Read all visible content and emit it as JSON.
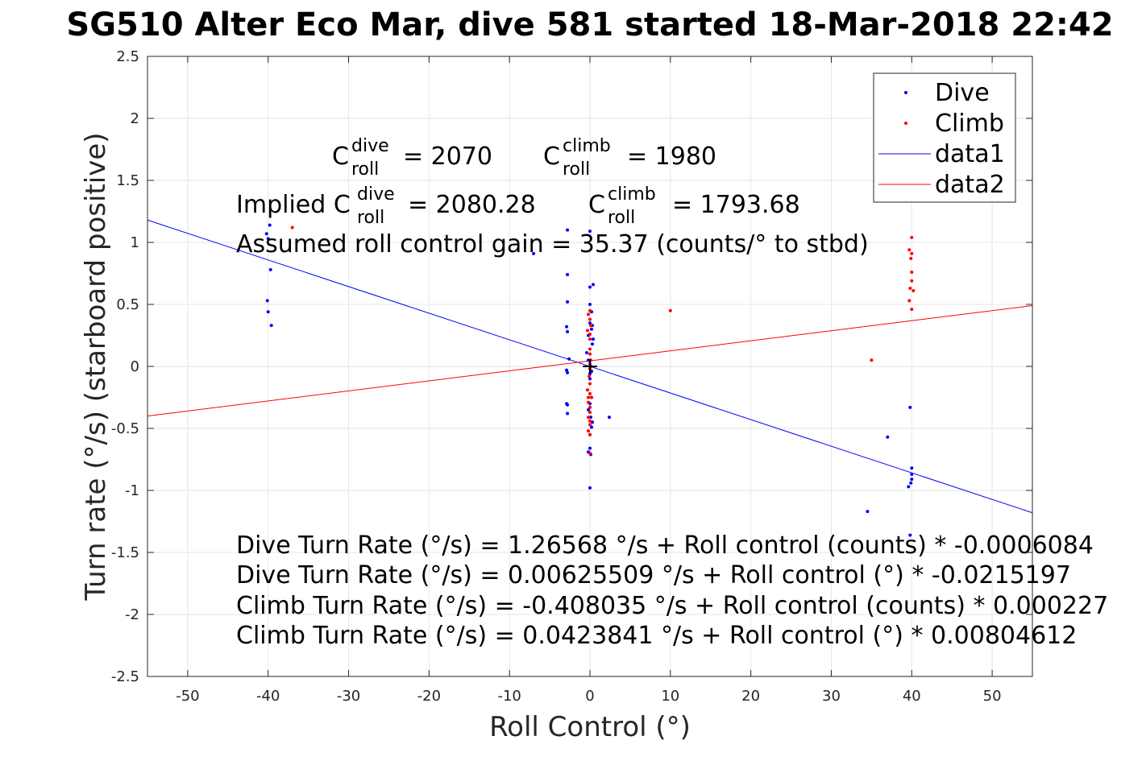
{
  "chart_data": {
    "type": "scatter",
    "title": "SG510 Alter Eco Mar, dive 581 started 18-Mar-2018 22:42",
    "xlabel": "Roll Control (°)",
    "ylabel": "Turn rate (°/s) (starboard positive)",
    "xlim": [
      -55,
      55
    ],
    "ylim": [
      -2.5,
      2.5
    ],
    "grid": true,
    "legend_position": "top-right",
    "x_ticks": [
      -50,
      -40,
      -30,
      -20,
      -10,
      0,
      10,
      20,
      30,
      40,
      50
    ],
    "y_ticks": [
      -2.5,
      -2,
      -1.5,
      -1,
      -0.5,
      0,
      0.5,
      1,
      1.5,
      2,
      2.5
    ],
    "x_tick_labels": [
      "-50",
      "-40",
      "-30",
      "-20",
      "-10",
      "0",
      "10",
      "20",
      "30",
      "40",
      "50"
    ],
    "y_tick_labels": [
      "-2.5",
      "-2",
      "-1.5",
      "-1",
      "-0.5",
      "0",
      "0.5",
      "1",
      "1.5",
      "2",
      "2.5"
    ],
    "colors": {
      "dive": "#0000ff",
      "climb": "#ff0000",
      "center_marker": "#000000"
    },
    "series": [
      {
        "name": "Dive",
        "kind": "points",
        "color": "#0000ff",
        "points": [
          [
            -39.8,
            1.14
          ],
          [
            -40.2,
            1.07
          ],
          [
            -40.0,
            1.03
          ],
          [
            -39.7,
            0.78
          ],
          [
            -40.1,
            0.53
          ],
          [
            -40.0,
            0.44
          ],
          [
            -39.6,
            0.33
          ],
          [
            -7.0,
            0.91
          ],
          [
            -2.8,
            1.1
          ],
          [
            -2.8,
            0.74
          ],
          [
            -2.8,
            0.52
          ],
          [
            -2.9,
            0.32
          ],
          [
            -2.8,
            0.28
          ],
          [
            -2.6,
            0.06
          ],
          [
            -2.9,
            -0.03
          ],
          [
            -2.8,
            -0.05
          ],
          [
            -2.9,
            -0.3
          ],
          [
            -2.8,
            -0.31
          ],
          [
            -2.8,
            -0.38
          ],
          [
            0.0,
            1.09
          ],
          [
            0.4,
            0.66
          ],
          [
            0.0,
            0.64
          ],
          [
            0.0,
            0.5
          ],
          [
            0.2,
            0.44
          ],
          [
            0.0,
            0.35
          ],
          [
            0.3,
            0.33
          ],
          [
            0.2,
            0.3
          ],
          [
            -0.2,
            0.25
          ],
          [
            0.4,
            0.22
          ],
          [
            0.3,
            0.18
          ],
          [
            -0.4,
            0.11
          ],
          [
            -0.2,
            0.05
          ],
          [
            0.0,
            0.02
          ],
          [
            0.1,
            0.0
          ],
          [
            0.2,
            -0.04
          ],
          [
            0.0,
            -0.06
          ],
          [
            0.0,
            -0.1
          ],
          [
            0.2,
            -0.25
          ],
          [
            0.0,
            -0.3
          ],
          [
            -0.2,
            -0.35
          ],
          [
            0.1,
            -0.41
          ],
          [
            0.3,
            -0.45
          ],
          [
            0.2,
            -0.49
          ],
          [
            0.0,
            -0.55
          ],
          [
            0.0,
            -0.66
          ],
          [
            -0.2,
            -0.69
          ],
          [
            0.1,
            -0.71
          ],
          [
            0.0,
            -0.98
          ],
          [
            2.4,
            -0.41
          ],
          [
            34.5,
            -1.17
          ],
          [
            37.0,
            -0.57
          ],
          [
            39.8,
            -0.33
          ],
          [
            40.0,
            -0.82
          ],
          [
            40.0,
            -0.87
          ],
          [
            40.0,
            -0.91
          ],
          [
            39.9,
            -0.94
          ],
          [
            39.6,
            -0.97
          ],
          [
            39.8,
            -1.36
          ]
        ]
      },
      {
        "name": "Climb",
        "kind": "points",
        "color": "#ff0000",
        "points": [
          [
            -37.0,
            1.12
          ],
          [
            0.0,
            0.45
          ],
          [
            -0.2,
            0.42
          ],
          [
            0.0,
            0.38
          ],
          [
            0.1,
            0.33
          ],
          [
            -0.3,
            0.29
          ],
          [
            0.0,
            0.26
          ],
          [
            0.0,
            0.22
          ],
          [
            0.0,
            0.14
          ],
          [
            0.0,
            0.1
          ],
          [
            0.1,
            0.05
          ],
          [
            0.0,
            0.02
          ],
          [
            0.0,
            -0.02
          ],
          [
            -0.1,
            -0.08
          ],
          [
            0.0,
            -0.14
          ],
          [
            -0.3,
            -0.19
          ],
          [
            0.0,
            -0.22
          ],
          [
            -0.2,
            -0.25
          ],
          [
            0.2,
            -0.25
          ],
          [
            -0.2,
            -0.29
          ],
          [
            0.0,
            -0.33
          ],
          [
            0.0,
            -0.37
          ],
          [
            -0.2,
            -0.41
          ],
          [
            0.0,
            -0.44
          ],
          [
            0.0,
            -0.47
          ],
          [
            -0.2,
            -0.52
          ],
          [
            0.0,
            -0.55
          ],
          [
            0.0,
            -0.7
          ],
          [
            10.0,
            0.45
          ],
          [
            35.0,
            0.05
          ],
          [
            40.0,
            1.04
          ],
          [
            39.7,
            0.94
          ],
          [
            40.0,
            0.91
          ],
          [
            39.9,
            0.87
          ],
          [
            40.0,
            0.76
          ],
          [
            40.0,
            0.69
          ],
          [
            39.8,
            0.63
          ],
          [
            40.2,
            0.61
          ],
          [
            39.7,
            0.53
          ],
          [
            40.0,
            0.46
          ]
        ]
      },
      {
        "name": "data1",
        "kind": "line",
        "color": "#0000ff",
        "x": [
          -55,
          55
        ],
        "y": [
          1.18,
          -1.18
        ]
      },
      {
        "name": "data2",
        "kind": "line",
        "color": "#ff0000",
        "x": [
          -55,
          55
        ],
        "y": [
          -0.4,
          0.49
        ]
      }
    ],
    "center_marker": {
      "symbol": "+",
      "x": 0,
      "y": 0
    },
    "annotations": {
      "c_dive_label": "C",
      "c_dive_sup": "dive",
      "c_dive_sub": "roll",
      "c_dive_value": "= 2070",
      "c_climb_label": "C",
      "c_climb_sup": "climb",
      "c_climb_sub": "roll",
      "c_climb_value": "= 1980",
      "implied_prefix": "Implied C",
      "implied_dive_sup": "dive",
      "implied_dive_sub": "roll",
      "implied_dive_value": "= 2080.28",
      "implied_climb_label": "C",
      "implied_climb_sup": "climb",
      "implied_climb_sub": "roll",
      "implied_climb_value": "= 1793.68",
      "gain_line": "Assumed roll control gain = 35.37 (counts/° to stbd)",
      "eq1": "Dive Turn Rate (°/s) = 1.26568 °/s + Roll control (counts) * -0.0006084",
      "eq2": "Dive Turn Rate (°/s) = 0.00625509 °/s + Roll control (°) * -0.0215197",
      "eq3": "Climb Turn Rate (°/s) = -0.408035 °/s + Roll control (counts) * 0.000227",
      "eq4": "Climb Turn Rate (°/s) = 0.0423841 °/s + Roll control (°) * 0.00804612"
    }
  }
}
